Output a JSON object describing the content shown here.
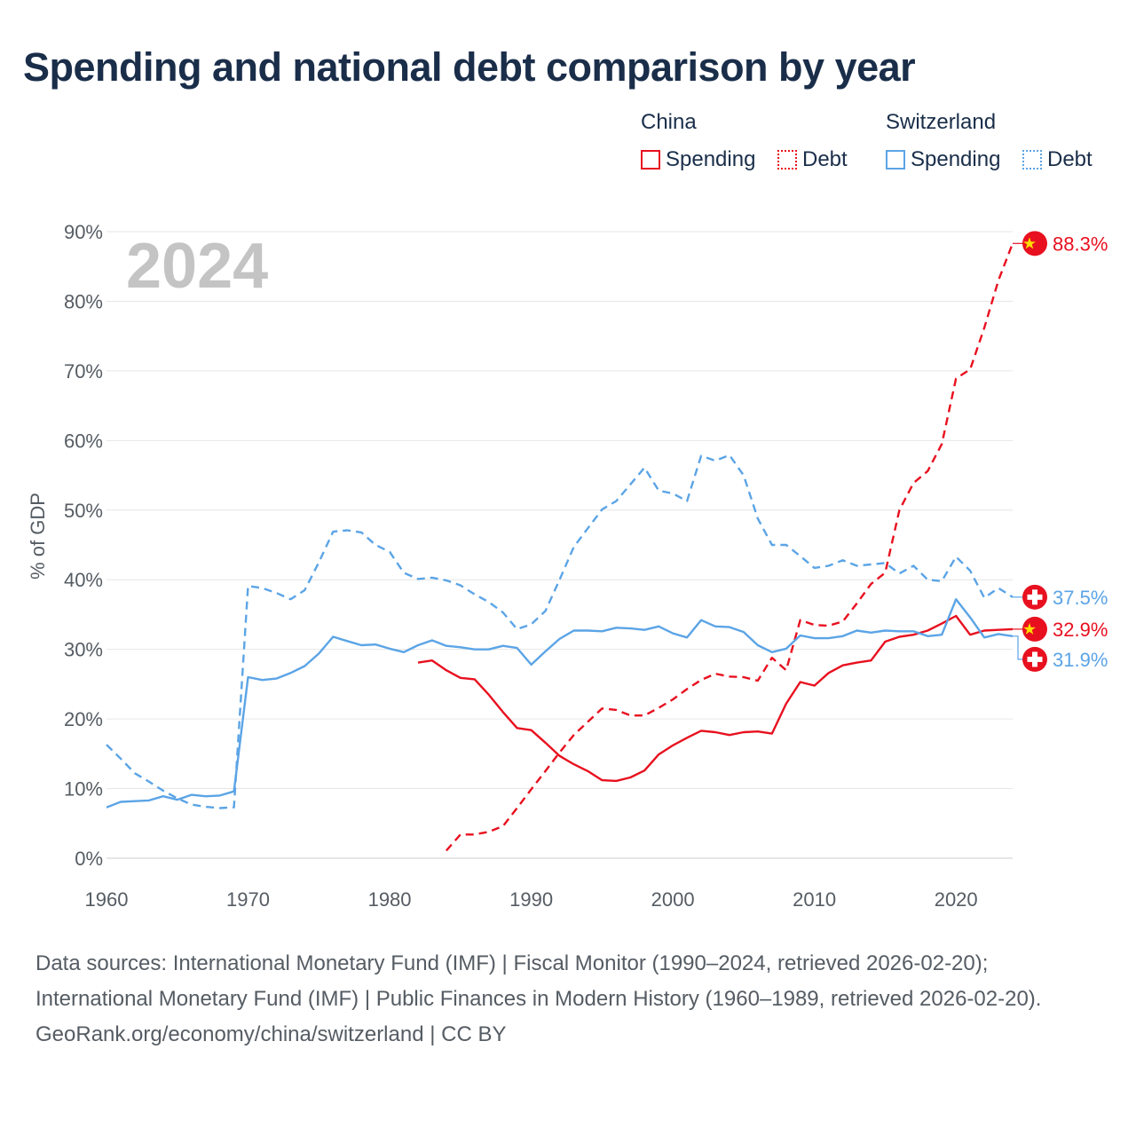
{
  "title": "Spending and national debt comparison by year",
  "legend": {
    "groups": [
      {
        "name": "China",
        "color": "#e8101f",
        "items": [
          {
            "label": "Spending",
            "style": "solid"
          },
          {
            "label": "Debt",
            "style": "dotted"
          }
        ]
      },
      {
        "name": "Switzerland",
        "color": "#5ba4e6",
        "items": [
          {
            "label": "Spending",
            "style": "solid"
          },
          {
            "label": "Debt",
            "style": "dotted"
          }
        ]
      }
    ]
  },
  "year_watermark": "2024",
  "colors": {
    "china": "#e8101f",
    "switzerland": "#5ba4e6",
    "grid": "#e6e6e6",
    "watermark": "#c4c4c4"
  },
  "chart_data": {
    "type": "line",
    "ylabel": "% of GDP",
    "xlim": [
      1960,
      2024
    ],
    "ylim": [
      0,
      90
    ],
    "x_ticks": [
      "1960",
      "1970",
      "1980",
      "1990",
      "2000",
      "2010",
      "2020"
    ],
    "y_ticks": [
      "0%",
      "10%",
      "20%",
      "30%",
      "40%",
      "50%",
      "60%",
      "70%",
      "80%",
      "90%"
    ],
    "series": [
      {
        "name": "China Spending",
        "country": "China",
        "style": "solid",
        "color": "#e8101f",
        "x": [
          1982,
          1983,
          1984,
          1985,
          1986,
          1987,
          1988,
          1989,
          1990,
          1991,
          1992,
          1993,
          1994,
          1995,
          1996,
          1997,
          1998,
          1999,
          2000,
          2001,
          2002,
          2003,
          2004,
          2005,
          2006,
          2007,
          2008,
          2009,
          2010,
          2011,
          2012,
          2013,
          2014,
          2015,
          2016,
          2017,
          2018,
          2019,
          2020,
          2021,
          2022,
          2023,
          2024
        ],
        "y": [
          28.1,
          28.4,
          27.0,
          25.9,
          25.7,
          23.5,
          21.0,
          18.7,
          18.4,
          16.6,
          14.7,
          13.5,
          12.5,
          11.2,
          11.1,
          11.6,
          12.6,
          14.9,
          16.2,
          17.3,
          18.3,
          18.1,
          17.7,
          18.1,
          18.2,
          17.9,
          22.2,
          25.3,
          24.8,
          26.6,
          27.7,
          28.1,
          28.4,
          31.1,
          31.8,
          32.1,
          32.7,
          33.7,
          34.8,
          32.1,
          32.7,
          32.8,
          32.9
        ]
      },
      {
        "name": "China Debt",
        "country": "China",
        "style": "dashed",
        "color": "#e8101f",
        "x": [
          1984,
          1985,
          1986,
          1987,
          1988,
          1989,
          1990,
          1991,
          1992,
          1993,
          1994,
          1995,
          1996,
          1997,
          1998,
          1999,
          2000,
          2001,
          2002,
          2003,
          2004,
          2005,
          2006,
          2007,
          2008,
          2009,
          2010,
          2011,
          2012,
          2013,
          2014,
          2015,
          2016,
          2017,
          2018,
          2019,
          2020,
          2021,
          2022,
          2023,
          2024
        ],
        "y": [
          1.1,
          3.4,
          3.4,
          3.8,
          4.6,
          7.2,
          9.9,
          12.5,
          15.2,
          17.7,
          19.6,
          21.5,
          21.3,
          20.5,
          20.5,
          21.6,
          22.8,
          24.3,
          25.6,
          26.5,
          26.1,
          26.0,
          25.5,
          28.8,
          27.0,
          34.2,
          33.5,
          33.4,
          34.0,
          36.6,
          39.4,
          41.0,
          50.0,
          53.9,
          55.6,
          59.5,
          68.9,
          70.2,
          76.2,
          83.0,
          88.3
        ]
      },
      {
        "name": "Switzerland Spending",
        "country": "Switzerland",
        "style": "solid",
        "color": "#5ba4e6",
        "x": [
          1960,
          1961,
          1962,
          1963,
          1964,
          1965,
          1966,
          1967,
          1968,
          1969,
          1970,
          1971,
          1972,
          1973,
          1974,
          1975,
          1976,
          1977,
          1978,
          1979,
          1980,
          1981,
          1982,
          1983,
          1984,
          1985,
          1986,
          1987,
          1988,
          1989,
          1990,
          1991,
          1992,
          1993,
          1994,
          1995,
          1996,
          1997,
          1998,
          1999,
          2000,
          2001,
          2002,
          2003,
          2004,
          2005,
          2006,
          2007,
          2008,
          2009,
          2010,
          2011,
          2012,
          2013,
          2014,
          2015,
          2016,
          2017,
          2018,
          2019,
          2020,
          2021,
          2022,
          2023,
          2024
        ],
        "y": [
          7.3,
          8.1,
          8.2,
          8.3,
          8.9,
          8.4,
          9.1,
          8.9,
          9.0,
          9.6,
          26.0,
          25.6,
          25.8,
          26.6,
          27.6,
          29.4,
          31.8,
          31.2,
          30.6,
          30.7,
          30.1,
          29.6,
          30.6,
          31.3,
          30.5,
          30.3,
          30.0,
          30.0,
          30.5,
          30.2,
          27.8,
          29.7,
          31.5,
          32.7,
          32.7,
          32.6,
          33.1,
          33.0,
          32.8,
          33.3,
          32.3,
          31.7,
          34.2,
          33.3,
          33.2,
          32.5,
          30.6,
          29.6,
          30.1,
          32.0,
          31.6,
          31.6,
          31.9,
          32.7,
          32.4,
          32.7,
          32.6,
          32.6,
          31.9,
          32.1,
          37.2,
          34.6,
          31.7,
          32.2,
          31.9
        ]
      },
      {
        "name": "Switzerland Debt",
        "country": "Switzerland",
        "style": "dashed",
        "color": "#5ba4e6",
        "x": [
          1960,
          1961,
          1962,
          1963,
          1964,
          1965,
          1966,
          1967,
          1968,
          1969,
          1970,
          1971,
          1972,
          1973,
          1974,
          1975,
          1976,
          1977,
          1978,
          1979,
          1980,
          1981,
          1982,
          1983,
          1984,
          1985,
          1986,
          1987,
          1988,
          1989,
          1990,
          1991,
          1992,
          1993,
          1994,
          1995,
          1996,
          1997,
          1998,
          1999,
          2000,
          2001,
          2002,
          2003,
          2004,
          2005,
          2006,
          2007,
          2008,
          2009,
          2010,
          2011,
          2012,
          2013,
          2014,
          2015,
          2016,
          2017,
          2018,
          2019,
          2020,
          2021,
          2022,
          2023,
          2024
        ],
        "y": [
          16.3,
          14.3,
          12.2,
          11.0,
          9.7,
          8.6,
          7.7,
          7.4,
          7.2,
          7.3,
          39.1,
          38.8,
          38.1,
          37.2,
          38.5,
          42.5,
          46.9,
          47.1,
          46.8,
          45.0,
          44.0,
          41.0,
          40.1,
          40.3,
          39.9,
          39.2,
          37.9,
          36.8,
          35.3,
          32.9,
          33.6,
          35.5,
          40.0,
          44.7,
          47.4,
          50.1,
          51.3,
          53.7,
          56.1,
          52.8,
          52.4,
          51.3,
          57.8,
          57.1,
          57.9,
          55.0,
          48.8,
          45.0,
          45.0,
          43.4,
          41.7,
          42.0,
          42.8,
          42.0,
          42.2,
          42.4,
          40.9,
          42.0,
          40.0,
          39.8,
          43.3,
          41.3,
          37.4,
          38.8,
          37.5
        ]
      }
    ],
    "end_labels": [
      {
        "country": "China",
        "series": "China Debt",
        "text": "88.3%"
      },
      {
        "country": "Switzerland",
        "series": "Switzerland Debt",
        "text": "37.5%"
      },
      {
        "country": "China",
        "series": "China Spending",
        "text": "32.9%"
      },
      {
        "country": "Switzerland",
        "series": "Switzerland Spending",
        "text": "31.9%"
      }
    ]
  },
  "footer": {
    "source_line": "Data sources: International Monetary Fund (IMF) | Fiscal Monitor (1990–2024, retrieved 2026-02-20); International Monetary Fund (IMF) | Public Finances in Modern History (1960–1989, retrieved 2026-02-20).",
    "credit": "GeoRank.org/economy/china/switzerland | CC BY"
  }
}
